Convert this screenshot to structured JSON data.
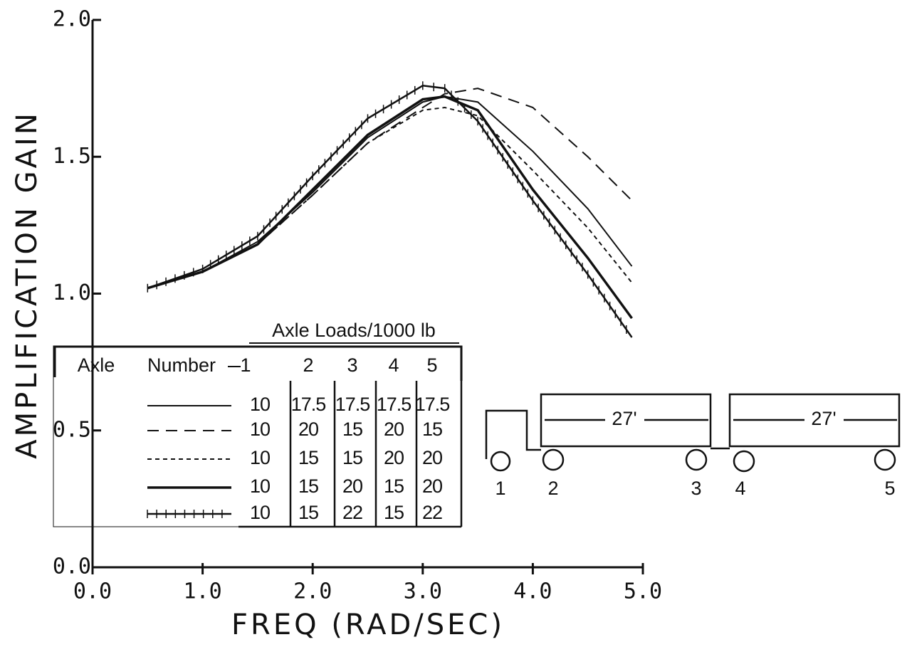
{
  "chart_data": {
    "type": "line",
    "ylabel": "AMPLIFICATION GAIN",
    "xlabel": "FREQ (RAD/SEC)",
    "x": [
      0.5,
      1.0,
      1.5,
      2.0,
      2.5,
      3.0,
      3.2,
      3.5,
      4.0,
      4.5,
      4.9
    ],
    "series": [
      {
        "style": "solid",
        "color": "#111111",
        "values": [
          1.02,
          1.08,
          1.19,
          1.37,
          1.57,
          1.7,
          1.72,
          1.7,
          1.52,
          1.31,
          1.1
        ]
      },
      {
        "style": "dashed",
        "color": "#111111",
        "values": [
          1.02,
          1.08,
          1.18,
          1.36,
          1.55,
          1.68,
          1.73,
          1.75,
          1.68,
          1.5,
          1.34
        ]
      },
      {
        "style": "dotted",
        "color": "#111111",
        "values": [
          1.02,
          1.08,
          1.18,
          1.36,
          1.55,
          1.67,
          1.68,
          1.65,
          1.45,
          1.24,
          1.04
        ]
      },
      {
        "style": "thick",
        "color": "#111111",
        "values": [
          1.02,
          1.08,
          1.18,
          1.38,
          1.58,
          1.71,
          1.72,
          1.67,
          1.38,
          1.13,
          0.91
        ]
      },
      {
        "style": "crossed",
        "color": "#111111",
        "values": [
          1.02,
          1.09,
          1.21,
          1.43,
          1.64,
          1.76,
          1.75,
          1.63,
          1.34,
          1.07,
          0.84
        ]
      }
    ],
    "xlim": [
      0,
      5
    ],
    "ylim": [
      0,
      2
    ],
    "xticks": [
      {
        "value": 0,
        "label": "0.0"
      },
      {
        "value": 1,
        "label": "1.0"
      },
      {
        "value": 2,
        "label": "2.0"
      },
      {
        "value": 3,
        "label": "3.0"
      },
      {
        "value": 4,
        "label": "4.0"
      },
      {
        "value": 5,
        "label": "5.0"
      }
    ],
    "yticks": [
      {
        "value": 0,
        "label": "0.0"
      },
      0.5,
      {
        "value": 1,
        "label": "1.0"
      },
      1.5,
      {
        "value": 2,
        "label": "2.0"
      }
    ],
    "grid": false
  },
  "table": {
    "title": "Axle Loads/1000 lb",
    "axle": "Axle",
    "number": "Number",
    "columns": [
      "1",
      "2",
      "3",
      "4",
      "5"
    ],
    "rows": [
      [
        10,
        17.5,
        17.5,
        17.5,
        17.5
      ],
      [
        10,
        20,
        15,
        20,
        15
      ],
      [
        10,
        15,
        15,
        20,
        20
      ],
      [
        10,
        15,
        20,
        15,
        20
      ],
      [
        10,
        15,
        22,
        15,
        22
      ]
    ]
  },
  "diagram": {
    "lengths": [
      "27'",
      "27'"
    ],
    "axles": [
      "1",
      "2",
      "3",
      "4",
      "5"
    ]
  }
}
